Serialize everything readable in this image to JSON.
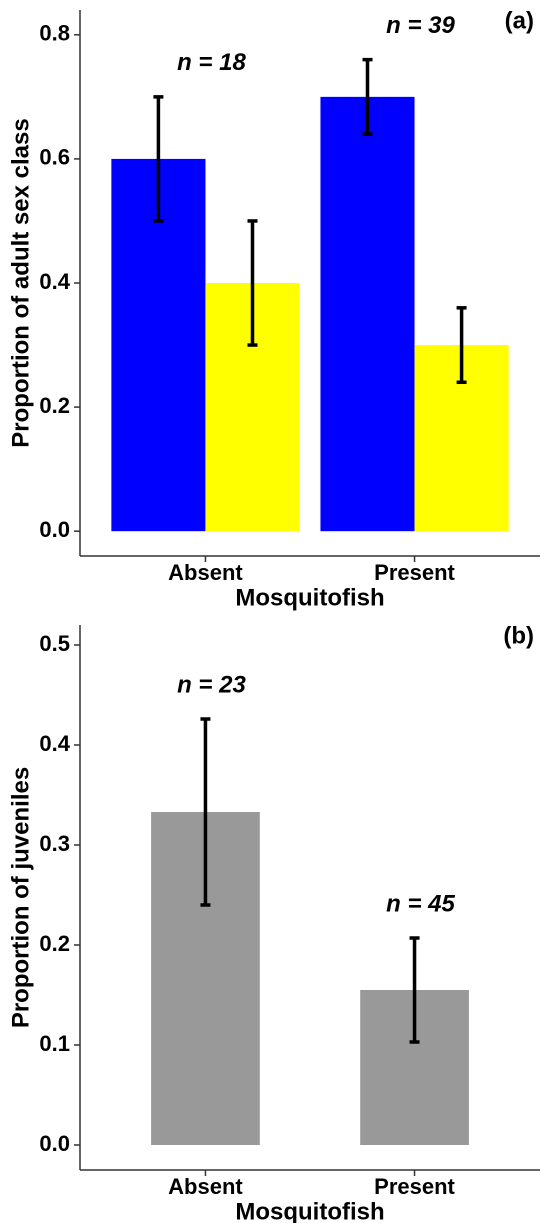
{
  "chart_data": [
    {
      "type": "bar",
      "panel_label": "(a)",
      "x_label": "Mosquitofish",
      "y_label": "Proportion of adult sex class",
      "categories": [
        "Absent",
        "Present"
      ],
      "series": [
        {
          "color": "#0000ff",
          "values": [
            0.6,
            0.7
          ],
          "errors": [
            0.1,
            0.06
          ]
        },
        {
          "color": "#ffff00",
          "values": [
            0.4,
            0.3
          ],
          "errors": [
            0.1,
            0.06
          ]
        }
      ],
      "annotations": [
        "n = 18",
        "n = 39"
      ],
      "ylim": [
        -0.04,
        0.84
      ],
      "yticks": [
        {
          "value": 0,
          "label": "0.0"
        },
        0.2,
        0.4,
        0.6,
        0.8
      ]
    },
    {
      "type": "bar",
      "panel_label": "(b)",
      "x_label": "Mosquitofish",
      "y_label": "Proportion of juveniles",
      "categories": [
        "Absent",
        "Present"
      ],
      "series": [
        {
          "color": "#999999",
          "values": [
            0.333,
            0.155
          ],
          "errors": [
            0.093,
            0.052
          ]
        }
      ],
      "annotations": [
        "n = 23",
        "n = 45"
      ],
      "ylim": [
        -0.025,
        0.52
      ],
      "yticks": [
        {
          "value": 0,
          "label": "0.0"
        },
        0.1,
        0.2,
        0.3,
        0.4,
        0.5
      ]
    }
  ]
}
